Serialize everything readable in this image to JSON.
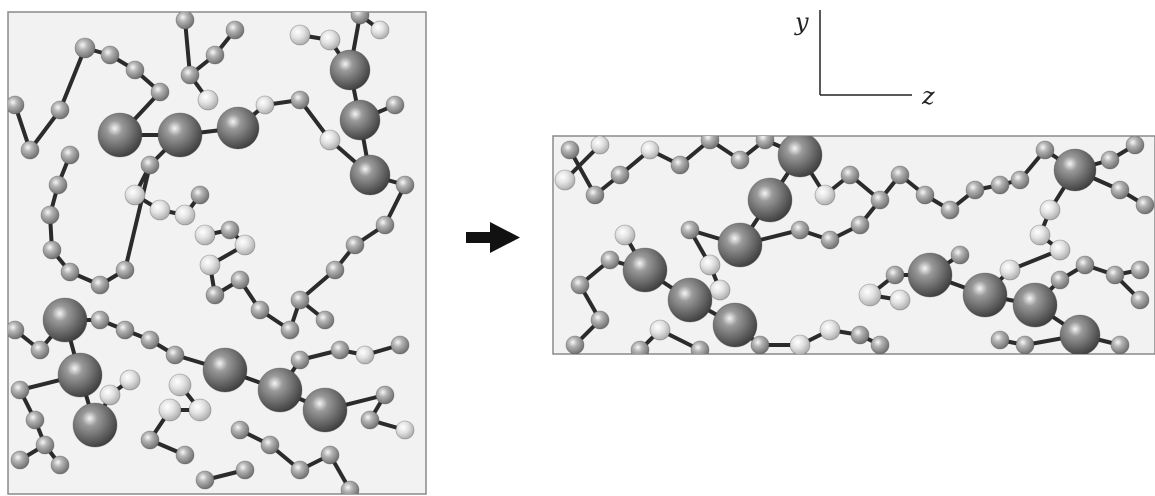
{
  "axes": {
    "vertical": "y",
    "horizontal": "z"
  },
  "colors": {
    "background": "#ffffff",
    "panel_background": "#f2f2f2",
    "panel_border": "#8a8a8a",
    "bond": "#2b2b2b",
    "atom_dark": "#6f6f6f",
    "atom_mid": "#9c9c9c",
    "atom_light": "#d6d6d6",
    "arrow": "#111111"
  },
  "arrow_icon": "right-arrow-icon"
}
